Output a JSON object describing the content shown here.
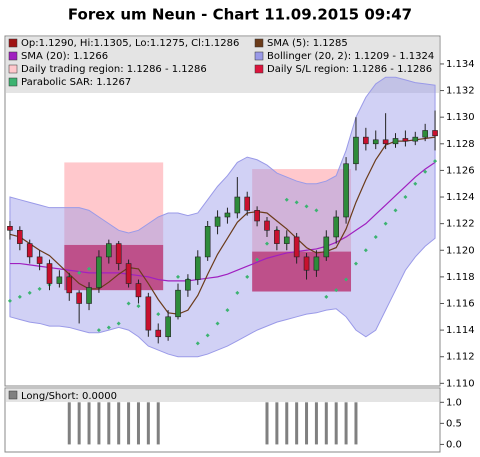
{
  "chart_data": {
    "type": "candlestick",
    "title": "Forex um Neun - Chart 11.09.2015 09:47",
    "ylim": [
      1.1098,
      1.1361
    ],
    "yticks": [
      {
        "value": 1.11,
        "label": "1.110"
      },
      1.112,
      1.114,
      1.116,
      1.118,
      {
        "value": 1.12,
        "label": "1.120"
      },
      1.122,
      1.124,
      1.126,
      1.128,
      {
        "value": 1.13,
        "label": "1.130"
      },
      1.132,
      1.134
    ],
    "candles": {
      "name": "Op:1.1290, Hi:1.1305, Lo:1.1275, Cl:1.1286",
      "color": "#a01414",
      "up_color": "#2e8b3a",
      "down_color": "#c8102e",
      "open": [
        1.1218,
        1.1215,
        1.1205,
        1.1195,
        1.119,
        1.1175,
        1.118,
        1.1168,
        1.116,
        1.1172,
        1.1195,
        1.1205,
        1.119,
        1.1175,
        1.1165,
        1.114,
        1.1135,
        1.115,
        1.117,
        1.1178,
        1.1195,
        1.1218,
        1.1225,
        1.1228,
        1.124,
        1.123,
        1.1222,
        1.1215,
        1.1205,
        1.121,
        1.1195,
        1.1185,
        1.1195,
        1.121,
        1.1225,
        1.1265,
        1.1285,
        1.128,
        1.1283,
        1.128,
        1.1284,
        1.1282,
        1.1285,
        1.129
      ],
      "high": [
        1.1222,
        1.1218,
        1.1208,
        1.12,
        1.1193,
        1.1185,
        1.1183,
        1.117,
        1.1176,
        1.12,
        1.1208,
        1.1207,
        1.1193,
        1.1178,
        1.1168,
        1.1145,
        1.1155,
        1.1175,
        1.1182,
        1.12,
        1.1222,
        1.123,
        1.1232,
        1.1255,
        1.1244,
        1.1233,
        1.1225,
        1.1218,
        1.1215,
        1.1213,
        1.1198,
        1.12,
        1.1215,
        1.123,
        1.127,
        1.13,
        1.1292,
        1.129,
        1.1303,
        1.1288,
        1.129,
        1.1289,
        1.1295,
        1.1305
      ],
      "low": [
        1.1208,
        1.12,
        1.119,
        1.1185,
        1.117,
        1.1172,
        1.1162,
        1.1145,
        1.1155,
        1.1168,
        1.119,
        1.1185,
        1.1172,
        1.116,
        1.1135,
        1.113,
        1.1132,
        1.1148,
        1.1165,
        1.1174,
        1.1192,
        1.1212,
        1.122,
        1.1224,
        1.1226,
        1.1218,
        1.121,
        1.12,
        1.12,
        1.119,
        1.1178,
        1.118,
        1.1192,
        1.1205,
        1.122,
        1.126,
        1.1275,
        1.1276,
        1.1276,
        1.1277,
        1.1278,
        1.1279,
        1.1282,
        1.1275
      ],
      "close": [
        1.1215,
        1.1205,
        1.1195,
        1.119,
        1.1175,
        1.118,
        1.1168,
        1.116,
        1.1172,
        1.1195,
        1.1205,
        1.119,
        1.1175,
        1.1165,
        1.114,
        1.1135,
        1.115,
        1.117,
        1.1178,
        1.1195,
        1.1218,
        1.1225,
        1.1228,
        1.124,
        1.123,
        1.1222,
        1.1215,
        1.1205,
        1.121,
        1.1195,
        1.1185,
        1.1195,
        1.121,
        1.1225,
        1.1265,
        1.1285,
        1.128,
        1.1283,
        1.128,
        1.1284,
        1.1282,
        1.1285,
        1.129,
        1.1286
      ]
    },
    "sma5": {
      "name": "SMA (5): 1.1285",
      "color": "#6b3b1a",
      "values": [
        1.1212,
        1.121,
        1.1205,
        1.12,
        1.1196,
        1.1189,
        1.1182,
        1.1175,
        1.1171,
        1.1171,
        1.1176,
        1.1182,
        1.1187,
        1.1186,
        1.1175,
        1.1163,
        1.1153,
        1.1152,
        1.1155,
        1.1166,
        1.1182,
        1.1197,
        1.1209,
        1.1221,
        1.1228,
        1.1229,
        1.1228,
        1.1222,
        1.1216,
        1.1209,
        1.1202,
        1.1198,
        1.1199,
        1.1202,
        1.1216,
        1.1236,
        1.1253,
        1.1268,
        1.1279,
        1.1282,
        1.1282,
        1.1283,
        1.1284,
        1.1285
      ]
    },
    "sma20": {
      "name": "SMA (20): 1.1266",
      "color": "#a020c0",
      "values": [
        1.119,
        1.119,
        1.1189,
        1.1188,
        1.1187,
        1.1186,
        1.1185,
        1.1184,
        1.1183,
        1.1183,
        1.1183,
        1.1183,
        1.1182,
        1.1181,
        1.118,
        1.1178,
        1.1177,
        1.1177,
        1.1177,
        1.1178,
        1.1179,
        1.118,
        1.1182,
        1.1185,
        1.1188,
        1.1191,
        1.1194,
        1.1196,
        1.1198,
        1.1199,
        1.12,
        1.1201,
        1.1203,
        1.1206,
        1.121,
        1.1215,
        1.122,
        1.1227,
        1.1234,
        1.1241,
        1.1248,
        1.1255,
        1.1261,
        1.1266
      ]
    },
    "bollinger": {
      "name": "Bollinger (20, 2): 1.1209 - 1.1324",
      "color": "#9a9ae8",
      "upper": [
        1.124,
        1.1238,
        1.1236,
        1.1234,
        1.1232,
        1.1232,
        1.1232,
        1.1232,
        1.123,
        1.1225,
        1.122,
        1.1215,
        1.1213,
        1.1215,
        1.122,
        1.1225,
        1.1228,
        1.1228,
        1.1226,
        1.1228,
        1.1238,
        1.1248,
        1.1256,
        1.1266,
        1.127,
        1.1268,
        1.1264,
        1.1258,
        1.1255,
        1.1252,
        1.125,
        1.125,
        1.1252,
        1.1256,
        1.1275,
        1.13,
        1.1315,
        1.1325,
        1.133,
        1.133,
        1.1328,
        1.1326,
        1.1325,
        1.1324
      ],
      "lower": [
        1.115,
        1.1148,
        1.1146,
        1.1145,
        1.1143,
        1.1143,
        1.1142,
        1.114,
        1.1138,
        1.1138,
        1.114,
        1.1142,
        1.114,
        1.1135,
        1.1128,
        1.1125,
        1.1122,
        1.112,
        1.112,
        1.112,
        1.1122,
        1.1125,
        1.1128,
        1.1132,
        1.1136,
        1.114,
        1.1143,
        1.1146,
        1.1148,
        1.115,
        1.1152,
        1.1153,
        1.1155,
        1.1156,
        1.115,
        1.114,
        1.1135,
        1.114,
        1.1155,
        1.117,
        1.1185,
        1.1195,
        1.1203,
        1.1209
      ]
    },
    "trading_region": {
      "name": "Daily trading region: 1.1286 - 1.1286",
      "color": "#ffc8cc",
      "items": [
        {
          "start": 6,
          "end": 15,
          "high": 1.1266,
          "low": 1.1204
        },
        {
          "start": 25,
          "end": 34,
          "high": 1.1261,
          "low": 1.1199
        }
      ]
    },
    "sl_region": {
      "name": "Daily S/L region: 1.1286 - 1.1286",
      "color": "#dc143c",
      "items": [
        {
          "start": 6,
          "end": 15,
          "high": 1.1204,
          "low": 1.117
        },
        {
          "start": 25,
          "end": 34,
          "high": 1.1199,
          "low": 1.1169
        }
      ]
    },
    "sar": {
      "name": "Parabolic SAR: 1.1267",
      "color": "#3cb371",
      "values": [
        1.1162,
        1.1165,
        1.1168,
        1.1171,
        1.1174,
        1.1177,
        1.118,
        1.1183,
        1.1186,
        1.114,
        1.1142,
        1.1145,
        1.116,
        1.1158,
        1.1155,
        1.1152,
        1.1148,
        1.118,
        1.1178,
        1.113,
        1.1136,
        1.1145,
        1.1155,
        1.1168,
        1.118,
        1.1193,
        1.1205,
        1.1215,
        1.1238,
        1.1236,
        1.1233,
        1.123,
        1.1165,
        1.117,
        1.1178,
        1.119,
        1.12,
        1.121,
        1.122,
        1.123,
        1.124,
        1.125,
        1.1259,
        1.1267
      ]
    },
    "indicator": {
      "name": "Long/Short: 0.0000",
      "color": "#808080",
      "ylim": [
        -0.18,
        1.34
      ],
      "yticks": [
        {
          "value": 0,
          "label": "0.0"
        },
        {
          "value": 0.5,
          "label": "0.5"
        },
        {
          "value": 1,
          "label": "1.0"
        }
      ],
      "values": [
        0,
        0,
        0,
        0,
        0,
        0,
        1,
        1,
        1,
        1,
        1,
        1,
        1,
        1,
        1,
        1,
        0,
        0,
        0,
        0,
        0,
        0,
        0,
        0,
        0,
        0,
        1,
        1,
        1,
        1,
        1,
        1,
        1,
        1,
        1,
        1,
        0,
        0,
        0,
        0,
        0,
        0,
        0,
        0
      ]
    }
  }
}
